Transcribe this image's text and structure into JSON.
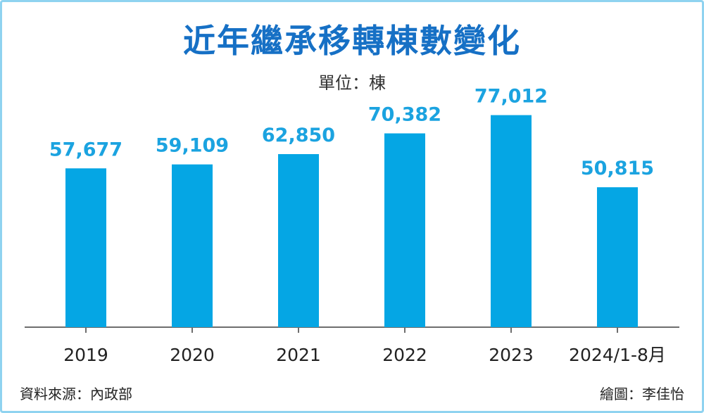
{
  "header": {
    "title": "近年繼承移轉棟數變化",
    "unit": "單位：棟"
  },
  "footer": {
    "source": "資料來源：內政部",
    "credit": "繪圖：李佳怡"
  },
  "colors": {
    "title": "#1670c5",
    "bar": "#05a6e4",
    "value_label": "#1ba3e0",
    "axis": "#6e6e6e",
    "border": "#8fd3f0"
  },
  "chart_data": {
    "type": "bar",
    "title": "近年繼承移轉棟數變化",
    "unit": "單位：棟",
    "categories": [
      "2019",
      "2020",
      "2021",
      "2022",
      "2023",
      "2024/1-8月"
    ],
    "values": [
      57677,
      59109,
      62850,
      70382,
      77012,
      50815
    ],
    "value_labels": [
      "57,677",
      "59,109",
      "62,850",
      "70,382",
      "77,012",
      "50,815"
    ],
    "ylim": [
      0,
      92500
    ],
    "grid": false,
    "legend": "none"
  }
}
